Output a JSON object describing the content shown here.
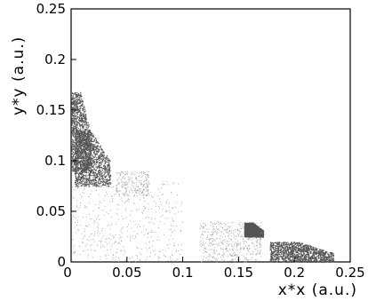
{
  "chart_data": {
    "type": "scatter",
    "title": "",
    "xlabel": "x*x (a.u.)",
    "ylabel": "y*y (a.u.)",
    "xlim": [
      0,
      0.25
    ],
    "ylim": [
      0,
      0.25
    ],
    "grid": false,
    "x_ticks": [
      "0",
      "0.05",
      "0.1",
      "0.15",
      "0.2",
      "0.25"
    ],
    "y_ticks": [
      "0",
      "0.05",
      "0.1",
      "0.15",
      "0.2",
      "0.25"
    ],
    "dense_regions": [
      {
        "name": "",
        "x_range": [
          0.0,
          0.018
        ],
        "y_range": [
          0.09,
          0.168
        ],
        "density": "high"
      },
      {
        "name": "",
        "x_range": [
          0.003,
          0.035
        ],
        "y_range": [
          0.075,
          0.13
        ],
        "density": "high"
      },
      {
        "name": "",
        "x_range": [
          0.04,
          0.07
        ],
        "y_range": [
          0.065,
          0.09
        ],
        "density": "low"
      },
      {
        "name": "",
        "x_range": [
          0.0,
          0.1
        ],
        "y_range": [
          0.0,
          0.08
        ],
        "density": "sparse"
      },
      {
        "name": "",
        "x_range": [
          0.115,
          0.17
        ],
        "y_range": [
          0.0,
          0.04
        ],
        "density": "sparse"
      },
      {
        "name": "",
        "x_range": [
          0.155,
          0.172
        ],
        "y_range": [
          0.025,
          0.039
        ],
        "density": "high"
      },
      {
        "name": "",
        "x_range": [
          0.178,
          0.235
        ],
        "y_range": [
          0.0,
          0.02
        ],
        "density": "high"
      }
    ],
    "series_color": "#555555"
  }
}
